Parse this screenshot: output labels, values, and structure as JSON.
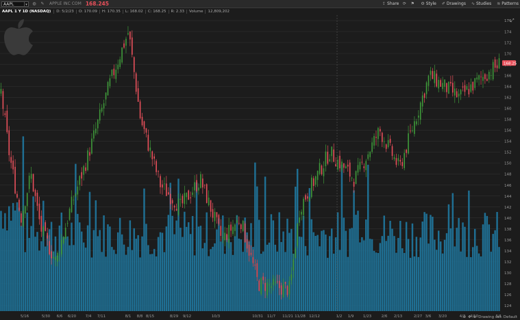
{
  "topbar": {
    "symbol": "AAPL",
    "company": "APPLE INC COM",
    "last_price": "168.245",
    "tools": [
      {
        "icon": "share-icon",
        "label": "Share"
      },
      {
        "icon": "style-icon",
        "label": "Style"
      },
      {
        "icon": "drawings-icon",
        "label": "Drawings"
      },
      {
        "icon": "studies-icon",
        "label": "Studies"
      },
      {
        "icon": "patterns-icon",
        "label": "Patterns"
      }
    ]
  },
  "infobar": {
    "title": "AAPL 1 Y 1D (NASDAQ)",
    "date": "D: 5/2/23",
    "open": "O: 170.09",
    "high": "H: 170.35",
    "low": "L: 168.02",
    "close": "C: 168.25",
    "range": "R: 2.33",
    "volume_label": "Volume",
    "volume_value": "12,809,202"
  },
  "chart_data": {
    "type": "candlestick",
    "y_ticks": [
      "124",
      "126",
      "128",
      "130",
      "132",
      "134",
      "136",
      "138",
      "140",
      "142",
      "144",
      "146",
      "148",
      "150",
      "152",
      "154",
      "156",
      "158",
      "160",
      "162",
      "164",
      "166",
      "168",
      "170",
      "172",
      "174",
      "176"
    ],
    "ylim": [
      123,
      177
    ],
    "x_ticks": [
      "5/16",
      "5/30",
      "6/6",
      "6/20",
      "7/4",
      "7/11",
      "8/1",
      "8/8",
      "8/15",
      "8/29",
      "9/12",
      "10/3",
      "10/31",
      "11/7",
      "11/21",
      "11/28",
      "12/12",
      "1/2",
      "1/9",
      "1/23",
      "2/6",
      "2/13",
      "2/27",
      "3/6",
      "3/20",
      "4/3",
      "4/10",
      "5/1"
    ],
    "price_label": "168.25",
    "colors": {
      "up": "#3f9a3a",
      "down": "#e8505b",
      "volume": "#1f6f93",
      "grid": "#2f2f2f"
    }
  },
  "footer": {
    "drawing_set": "Drawing set: Default"
  }
}
